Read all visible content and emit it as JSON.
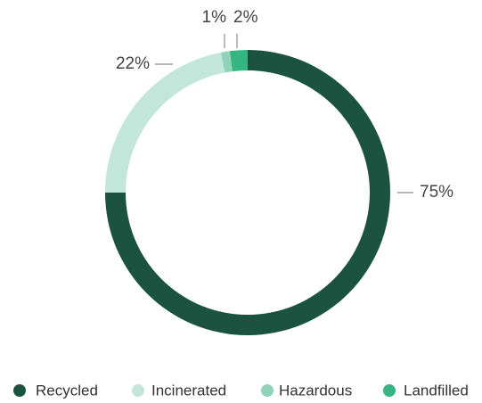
{
  "chart_data": {
    "type": "donut",
    "categories": [
      "Recycled",
      "Incinerated",
      "Hazardous",
      "Landfilled"
    ],
    "values": [
      75,
      22,
      1,
      2
    ],
    "value_labels": [
      "75%",
      "22%",
      "1%",
      "2%"
    ],
    "colors": [
      "#1b5240",
      "#c3e6da",
      "#8fd3b8",
      "#36b584"
    ],
    "legend": "bottom"
  }
}
